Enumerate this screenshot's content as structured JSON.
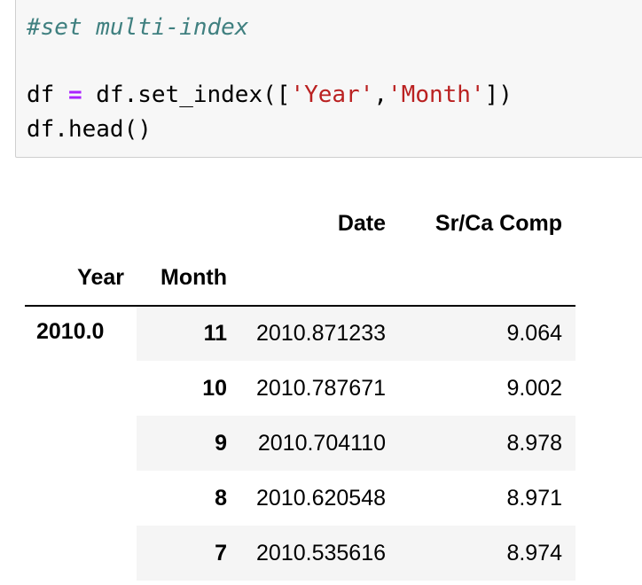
{
  "code_cell": {
    "comment": "#set multi-index",
    "line2": {
      "lhs": "df ",
      "eq": "=",
      "call_start": " df.set_index([",
      "q1": "'Year'",
      "comma": ",",
      "q2": "'Month'",
      "call_end": "])"
    },
    "line3": "df.head()"
  },
  "dataframe": {
    "columns": [
      "Date",
      "Sr/Ca Comp"
    ],
    "index_names": [
      "Year",
      "Month"
    ],
    "year": "2010.0",
    "rows": [
      {
        "month": "11",
        "date": "2010.871233",
        "value": "9.064"
      },
      {
        "month": "10",
        "date": "2010.787671",
        "value": "9.002"
      },
      {
        "month": "9",
        "date": "2010.704110",
        "value": "8.978"
      },
      {
        "month": "8",
        "date": "2010.620548",
        "value": "8.971"
      },
      {
        "month": "7",
        "date": "2010.535616",
        "value": "8.974"
      }
    ]
  }
}
